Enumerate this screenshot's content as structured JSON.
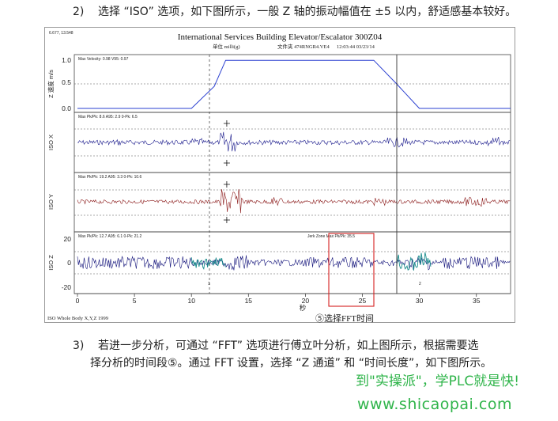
{
  "para1": {
    "num": "2)",
    "text": "选择 “ISO” 选项，如下图所示，一般 Z 轴的振动幅值在 ±5 以内，舒适感基本较好。"
  },
  "figure": {
    "corner_readout": "6.677, 13.548",
    "title": "International Services Building    Elevator/Escalator  300Z04",
    "subtitle_unit": "单位  milli(g)",
    "subtitle_file": "文件夹  474RNGR4.VE4",
    "subtitle_time": "12:03:44  03/23/14",
    "footer": "ISO Whole Body X,Y,Z  1999",
    "x_axis_label": "秒",
    "x_ticks": [
      "0",
      "5",
      "10",
      "15",
      "20",
      "25",
      "30",
      "35"
    ],
    "marker_1": "1",
    "marker_2": "2",
    "caption": "⑤选择FFT时间",
    "panels": [
      {
        "ylabel": "Z 速度 m/s",
        "stats": "Max Velocity: 0.98  V95: 0.97",
        "yticks": [
          "1.0",
          "0.5",
          "0.0"
        ]
      },
      {
        "ylabel": "ISO X",
        "stats": "Max Pk/Pk: 8.6  A95: 2.9  0-Pk: 6.5"
      },
      {
        "ylabel": "ISO Y",
        "stats": "Max Pk/Pk: 19.2  A95: 3.3  0-Pk: 10.6"
      },
      {
        "ylabel": "ISO Z",
        "stats": "Max Pk/Pk: 12.7  A95: 6.1  0-Pk: 21.2",
        "yticks": [
          "20",
          "0",
          "-20"
        ],
        "jerk": "Jerk Zone Max Pk/Pk: 35.5"
      }
    ],
    "colors": {
      "velocity": "#2a3fd0",
      "iso_x": "#1a1a8c",
      "iso_y": "#8b1a1a",
      "iso_z": "#12127a",
      "jerk": "#1a8c8c",
      "highlight_box": "#d42020"
    }
  },
  "chart_data": {
    "type": "line",
    "title": "International Services Building    Elevator/Escalator  300Z04",
    "xlabel": "秒",
    "xlim": [
      0,
      38
    ],
    "x_ticks": [
      0,
      5,
      10,
      15,
      20,
      25,
      30,
      35
    ],
    "series": [
      {
        "name": "Z 速度 m/s",
        "ylim": [
          0,
          1.0
        ],
        "x": [
          0,
          10,
          12,
          13,
          26,
          28,
          30,
          38
        ],
        "values": [
          0,
          0,
          0.45,
          0.98,
          0.98,
          0.5,
          0,
          0
        ]
      },
      {
        "name": "ISO X",
        "stats": "Max Pk/Pk: 8.6  A95: 2.9  0-Pk: 6.5"
      },
      {
        "name": "ISO Y",
        "stats": "Max Pk/Pk: 19.2  A95: 3.3  0-Pk: 10.6"
      },
      {
        "name": "ISO Z",
        "ylim": [
          -20,
          20
        ],
        "stats": "Max Pk/Pk: 12.7  A95: 6.1  0-Pk: 21.2"
      }
    ],
    "markers": {
      "line_1": 11.5,
      "line_2": 28.0,
      "fft_box": [
        22,
        26
      ]
    }
  },
  "para3": {
    "num": "3)",
    "line1": "若进一步分析，可通过 “FFT” 选项进行傅立叶分析，如上图所示，根据需要选",
    "line2": "择分析的时间段⑤。通过 FFT 设置，选择 “Z 通道” 和 “时间长度”，如下图所示。"
  },
  "watermark": {
    "line1": "到\"实操派\"，学PLC就是快!",
    "line2": "www.shicaopai.com"
  }
}
